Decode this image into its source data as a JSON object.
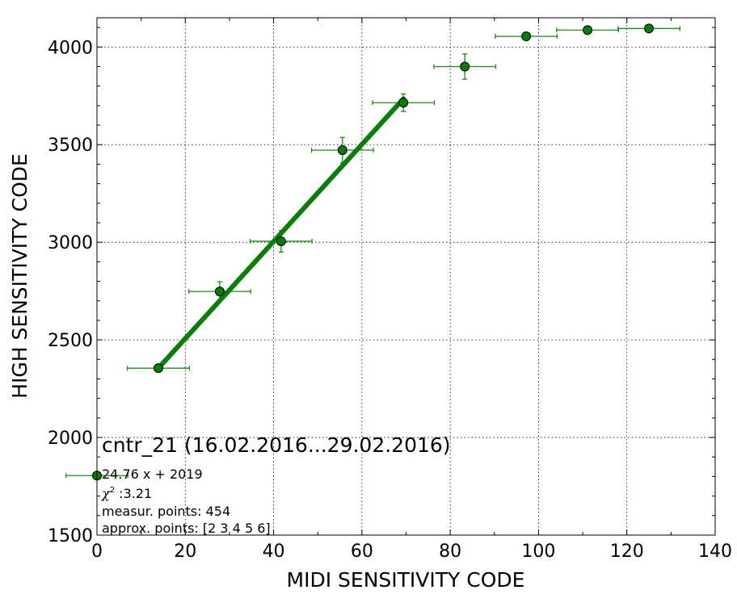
{
  "chart_data": {
    "type": "scatter",
    "xlabel": "MIDI SENSITIVITY CODE",
    "ylabel": "HIGH SENSITIVITY CODE",
    "xlim": [
      0,
      140
    ],
    "ylim": [
      1500,
      4150
    ],
    "x_ticks": [
      0,
      20,
      40,
      60,
      80,
      100,
      120,
      140
    ],
    "y_ticks": [
      1500,
      2000,
      2500,
      3000,
      3500,
      4000
    ],
    "x_tick_labels": [
      "0",
      "20",
      "40",
      "60",
      "80",
      "100",
      "120",
      "140"
    ],
    "y_tick_labels": [
      "1500",
      "2000",
      "2500",
      "3000",
      "3500",
      "4000"
    ],
    "grid": true,
    "points": [
      {
        "x": 0,
        "y": 1805,
        "xerr": 7,
        "yerr": 0
      },
      {
        "x": 13.9,
        "y": 2355,
        "xerr": 7,
        "yerr": 10
      },
      {
        "x": 27.8,
        "y": 2748,
        "xerr": 7,
        "yerr": 50
      },
      {
        "x": 41.7,
        "y": 3005,
        "xerr": 7,
        "yerr": 55
      },
      {
        "x": 55.6,
        "y": 3472,
        "xerr": 7,
        "yerr": 65
      },
      {
        "x": 69.4,
        "y": 3715,
        "xerr": 7,
        "yerr": 45
      },
      {
        "x": 83.3,
        "y": 3900,
        "xerr": 7,
        "yerr": 65
      },
      {
        "x": 97.2,
        "y": 4055,
        "xerr": 7,
        "yerr": 10
      },
      {
        "x": 111.1,
        "y": 4087,
        "xerr": 7,
        "yerr": 8
      },
      {
        "x": 125.0,
        "y": 4095,
        "xerr": 7,
        "yerr": 8
      }
    ],
    "fit_line": {
      "x": [
        13.9,
        69.4
      ],
      "y": [
        2355,
        3735
      ]
    },
    "annotation": {
      "title": "cntr_21 (16.02.2016...29.02.2016)",
      "equation": "24.76 x + 2019",
      "chi2_symbol": "χ",
      "chi2_sup": "2",
      "chi2_value": " :3.21",
      "measur_points": "measur. points: 454",
      "approx_points": "approx. points: [2 3 4 5 6]"
    },
    "colors": {
      "series": "#0a7a0a",
      "fit": "#0b7d0b",
      "error": "#1a8a1a"
    }
  }
}
